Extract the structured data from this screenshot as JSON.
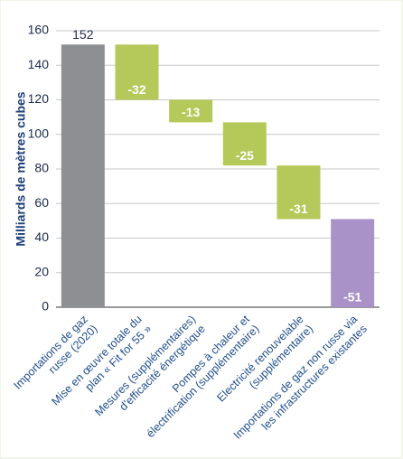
{
  "chart_data": {
    "type": "waterfall",
    "y_label": "Milliards de mètres cubes",
    "categories": [
      [
        "Importations de gaz",
        "russe (2020)"
      ],
      [
        "Mise en œuvre totale du",
        "plan « Fit for 55 »"
      ],
      [
        "Mesures (supplémentaires)",
        "d'efficacité énergétique"
      ],
      [
        "Pompes à chaleur et",
        "électrification (supplémentaire)"
      ],
      [
        "Electricité renouvelable",
        "(supplémentaire)"
      ],
      [
        "Importations de gaz non russe via",
        "les infrastructures existantes"
      ]
    ],
    "values": [
      152,
      -32,
      -13,
      -25,
      -31,
      -51
    ],
    "colors": [
      "#8e8f93",
      "#b5c85a",
      "#b5c85a",
      "#b5c85a",
      "#b5c85a",
      "#a992c8"
    ],
    "ylim": [
      0,
      160
    ],
    "yticks": [
      0,
      20,
      40,
      60,
      80,
      100,
      120,
      140,
      160
    ],
    "grid": true
  }
}
